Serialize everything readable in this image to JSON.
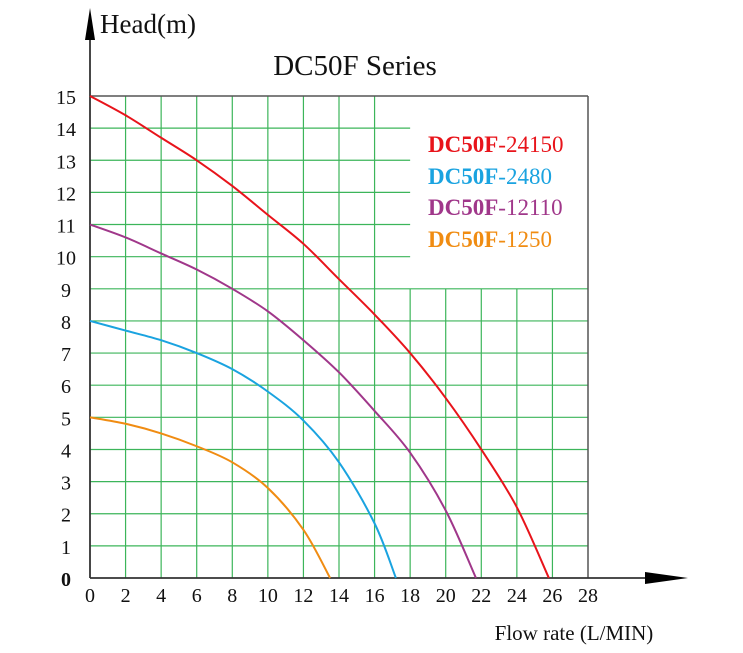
{
  "chart_data": {
    "type": "line",
    "title": "DC50F Series",
    "xlabel": "Flow rate (L/MIN)",
    "ylabel": "Head(m)",
    "xlim": [
      0,
      28
    ],
    "ylim": [
      0,
      15
    ],
    "xticks": [
      0,
      2,
      4,
      6,
      8,
      10,
      12,
      14,
      16,
      18,
      20,
      22,
      24,
      26,
      28
    ],
    "yticks": [
      0,
      1,
      2,
      3,
      4,
      5,
      6,
      7,
      8,
      9,
      10,
      11,
      12,
      13,
      14,
      15
    ],
    "grid": true,
    "grid_color": "#3cb55a",
    "legend_position": "top-right",
    "series": [
      {
        "name_prefix": "DC50F",
        "name_suffix": "-24150",
        "color": "#e8141b",
        "x": [
          0,
          2,
          4,
          6,
          8,
          10,
          12,
          14,
          16,
          18,
          20,
          22,
          24,
          25.8
        ],
        "y": [
          15,
          14.4,
          13.7,
          13,
          12.2,
          11.3,
          10.4,
          9.3,
          8.2,
          7,
          5.6,
          4,
          2.2,
          0
        ]
      },
      {
        "name_prefix": "DC50F",
        "name_suffix": "-2480",
        "color": "#1aa3e0",
        "x": [
          0,
          2,
          4,
          6,
          8,
          10,
          12,
          14,
          16,
          17.2
        ],
        "y": [
          8,
          7.7,
          7.4,
          7,
          6.5,
          5.8,
          4.9,
          3.6,
          1.7,
          0
        ]
      },
      {
        "name_prefix": "DC50F",
        "name_suffix": "-12110",
        "color": "#a0378a",
        "x": [
          0,
          2,
          4,
          6,
          8,
          10,
          12,
          14,
          16,
          18,
          20,
          21.7
        ],
        "y": [
          11,
          10.6,
          10.1,
          9.6,
          9,
          8.3,
          7.4,
          6.4,
          5.2,
          3.9,
          2.1,
          0
        ]
      },
      {
        "name_prefix": "DC50F",
        "name_suffix": "-1250",
        "color": "#f08c12",
        "x": [
          0,
          2,
          4,
          6,
          8,
          10,
          12,
          13.5
        ],
        "y": [
          5,
          4.8,
          4.5,
          4.1,
          3.6,
          2.8,
          1.5,
          0
        ]
      }
    ]
  }
}
